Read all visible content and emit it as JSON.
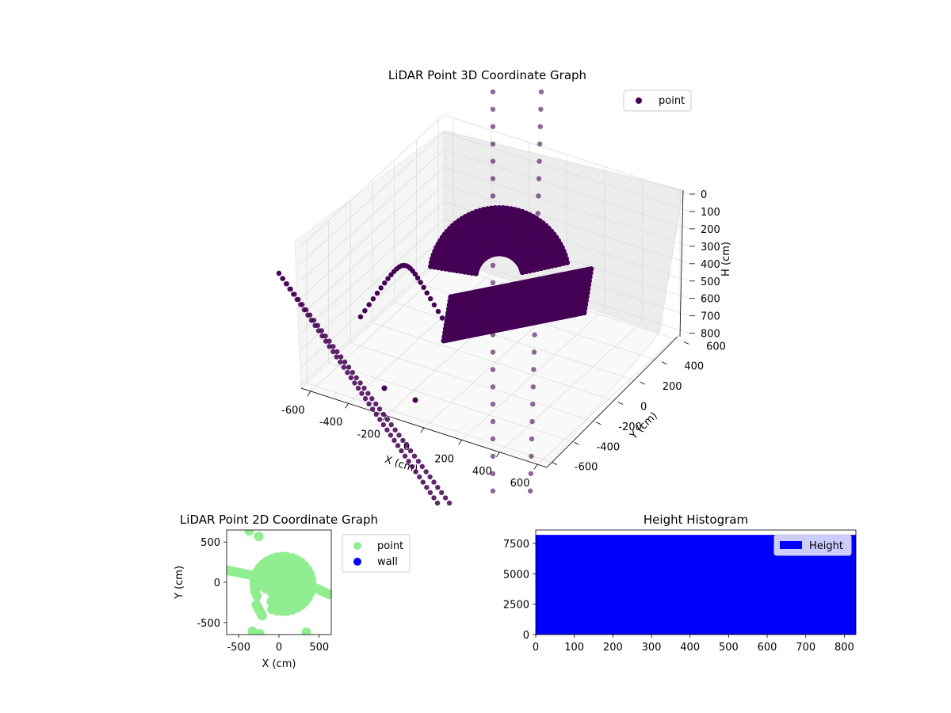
{
  "chart_data": [
    {
      "type": "scatter3d",
      "title": "LiDAR Point 3D Coordinate Graph",
      "xlabel": "X (cm)",
      "ylabel": "Y (cm)",
      "zlabel": "H (cm)",
      "xlim": [
        -650,
        650
      ],
      "ylim": [
        -650,
        650
      ],
      "zlim": [
        820,
        0
      ],
      "xticks": [
        -600,
        -400,
        -200,
        0,
        200,
        400,
        600
      ],
      "yticks": [
        -600,
        -400,
        -200,
        0,
        200,
        400,
        600
      ],
      "zticks": [
        0,
        100,
        200,
        300,
        400,
        500,
        600,
        700,
        800
      ],
      "legend": "top-right",
      "grid": true,
      "series": [
        {
          "name": "point",
          "color": "#440154"
        }
      ]
    },
    {
      "type": "scatter",
      "title": "LiDAR Point 2D Coordinate Graph",
      "xlabel": "X (cm)",
      "ylabel": "Y (cm)",
      "xlim": [
        -650,
        650
      ],
      "ylim": [
        -650,
        650
      ],
      "xticks": [
        -500,
        0,
        500
      ],
      "yticks": [
        -500,
        0,
        500
      ],
      "legend": "outside-right",
      "series": [
        {
          "name": "point",
          "color": "#90ee90"
        },
        {
          "name": "wall",
          "color": "#0000ff"
        }
      ]
    },
    {
      "type": "bar",
      "title": "Height Histogram",
      "xlim": [
        0,
        830
      ],
      "ylim": [
        0,
        8600
      ],
      "xticks": [
        0,
        100,
        200,
        300,
        400,
        500,
        600,
        700,
        800
      ],
      "yticks": [
        0,
        2500,
        5000,
        7500
      ],
      "legend": "top-right",
      "series": [
        {
          "name": "Height",
          "color": "#0000ff",
          "bin_range": [
            0,
            830
          ],
          "value": 8200
        }
      ]
    }
  ]
}
